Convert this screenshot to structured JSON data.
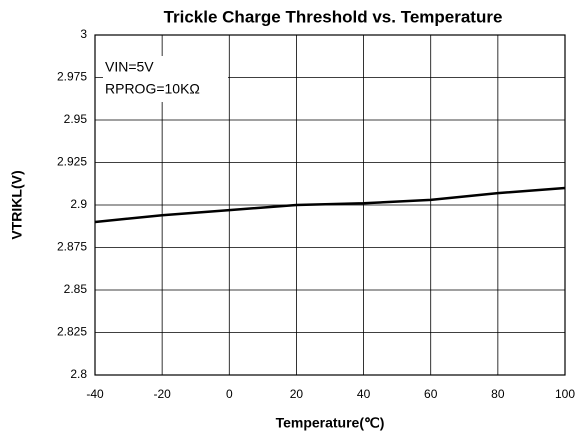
{
  "chart_data": {
    "type": "line",
    "title": "Trickle Charge Threshold  vs. Temperature",
    "xlabel": "Temperature(℃)",
    "ylabel": "VTRIKL(V)",
    "annotations": [
      "VIN=5V",
      "RPROG=10KΩ"
    ],
    "x": [
      -40,
      -20,
      0,
      20,
      40,
      60,
      80,
      100
    ],
    "series": [
      {
        "name": "VTRIKL",
        "color": "#000000",
        "values": [
          2.89,
          2.894,
          2.897,
          2.9,
          2.901,
          2.903,
          2.907,
          2.91
        ]
      }
    ],
    "xlim": [
      -40,
      100
    ],
    "xticks": [
      -40,
      -20,
      0,
      20,
      40,
      60,
      80,
      100
    ],
    "ylim": [
      2.8,
      3
    ],
    "yticks": [
      2.8,
      2.825,
      2.85,
      2.875,
      2.9,
      2.925,
      2.95,
      2.975,
      3
    ],
    "grid": true
  }
}
